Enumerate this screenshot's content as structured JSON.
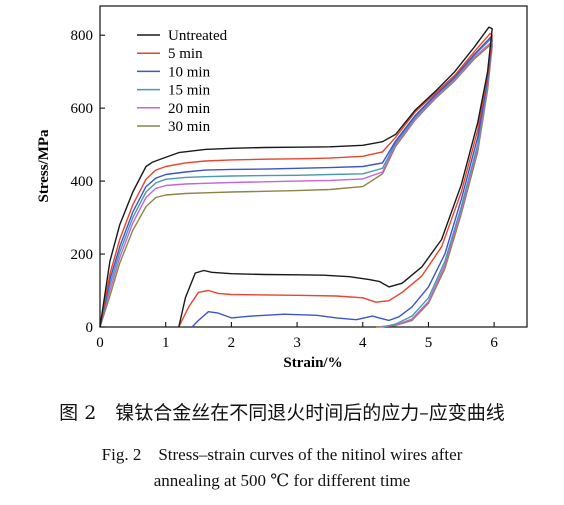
{
  "chart_data": {
    "type": "line",
    "xlabel": "Strain/%",
    "ylabel": "Stress/MPa",
    "xlim": [
      0,
      6.5
    ],
    "ylim": [
      0,
      880
    ],
    "xticks": [
      "0",
      "1",
      "2",
      "3",
      "4",
      "5",
      "6"
    ],
    "yticks": [
      "0",
      "200",
      "400",
      "600",
      "800"
    ],
    "grid": false,
    "legend": "top-left",
    "series": [
      {
        "name": "Untreated",
        "color": "#1a1a1a",
        "x": [
          0,
          0.15,
          0.3,
          0.5,
          0.7,
          0.8,
          0.95,
          1.2,
          1.6,
          2.0,
          2.5,
          3.0,
          3.5,
          4.0,
          4.3,
          4.5,
          4.8,
          5.1,
          5.4,
          5.7,
          5.92,
          5.97,
          5.9,
          5.75,
          5.5,
          5.2,
          4.9,
          4.6,
          4.4,
          4.25,
          4.1,
          3.8,
          3.4,
          3.0,
          2.5,
          2.0,
          1.7,
          1.58,
          1.45,
          1.3,
          1.2
        ],
        "y": [
          0,
          180,
          280,
          370,
          440,
          452,
          462,
          478,
          487,
          490,
          492,
          493,
          494,
          498,
          508,
          528,
          595,
          645,
          700,
          768,
          822,
          818,
          700,
          560,
          390,
          240,
          165,
          120,
          110,
          125,
          130,
          138,
          142,
          143,
          144,
          146,
          150,
          155,
          148,
          80,
          0
        ]
      },
      {
        "name": "5 min",
        "color": "#e8442e",
        "x": [
          0,
          0.15,
          0.3,
          0.5,
          0.7,
          0.85,
          1.0,
          1.3,
          1.6,
          2.0,
          2.5,
          3.0,
          3.5,
          4.0,
          4.3,
          4.5,
          4.8,
          5.1,
          5.4,
          5.7,
          5.94,
          5.97,
          5.9,
          5.75,
          5.5,
          5.2,
          4.9,
          4.6,
          4.4,
          4.2,
          4.0,
          3.6,
          3.0,
          2.5,
          2.0,
          1.8,
          1.65,
          1.5,
          1.35,
          1.2
        ],
        "y": [
          0,
          145,
          240,
          335,
          405,
          430,
          440,
          450,
          455,
          458,
          460,
          461,
          463,
          468,
          480,
          520,
          590,
          640,
          690,
          755,
          805,
          800,
          690,
          540,
          370,
          220,
          140,
          95,
          72,
          68,
          80,
          85,
          87,
          88,
          89,
          92,
          100,
          95,
          55,
          0
        ]
      },
      {
        "name": "10 min",
        "color": "#3c55c8",
        "x": [
          0,
          0.15,
          0.3,
          0.5,
          0.7,
          0.85,
          1.0,
          1.3,
          1.6,
          2.0,
          2.5,
          3.0,
          3.5,
          4.0,
          4.3,
          4.5,
          4.8,
          5.1,
          5.4,
          5.7,
          5.95,
          5.97,
          5.9,
          5.75,
          5.5,
          5.25,
          5.0,
          4.75,
          4.55,
          4.4,
          4.25,
          4.15,
          3.9,
          3.6,
          3.3,
          2.8,
          2.3,
          2.0,
          1.8,
          1.65,
          1.5,
          1.4
        ],
        "y": [
          0,
          130,
          220,
          315,
          385,
          408,
          418,
          425,
          430,
          432,
          433,
          435,
          437,
          440,
          450,
          510,
          580,
          635,
          685,
          748,
          795,
          790,
          680,
          520,
          350,
          200,
          110,
          55,
          28,
          18,
          25,
          30,
          20,
          25,
          32,
          35,
          30,
          25,
          38,
          42,
          18,
          0
        ]
      },
      {
        "name": "15 min",
        "color": "#4a9aa8",
        "x": [
          0,
          0.15,
          0.3,
          0.5,
          0.7,
          0.85,
          1.0,
          1.3,
          1.6,
          2.0,
          2.5,
          3.0,
          3.5,
          4.0,
          4.3,
          4.5,
          4.8,
          5.1,
          5.4,
          5.7,
          5.95,
          5.97,
          5.9,
          5.75,
          5.5,
          5.25,
          5.0,
          4.75,
          4.5,
          4.3
        ],
        "y": [
          0,
          115,
          205,
          300,
          370,
          395,
          405,
          410,
          412,
          414,
          415,
          416,
          418,
          420,
          435,
          505,
          575,
          632,
          682,
          745,
          790,
          785,
          670,
          500,
          330,
          180,
          80,
          30,
          8,
          0
        ]
      },
      {
        "name": "20 min",
        "color": "#c565d8",
        "x": [
          0,
          0.15,
          0.3,
          0.5,
          0.7,
          0.85,
          1.0,
          1.3,
          1.6,
          2.0,
          2.5,
          3.0,
          3.5,
          4.0,
          4.3,
          4.5,
          4.8,
          5.1,
          5.4,
          5.7,
          5.95,
          5.97,
          5.9,
          5.75,
          5.5,
          5.25,
          5.0,
          4.75,
          4.5,
          4.25
        ],
        "y": [
          0,
          100,
          190,
          285,
          355,
          380,
          388,
          392,
          394,
          396,
          398,
          400,
          402,
          406,
          425,
          500,
          570,
          628,
          678,
          740,
          780,
          775,
          660,
          490,
          320,
          170,
          70,
          22,
          5,
          0
        ]
      },
      {
        "name": "30 min",
        "color": "#8b8548",
        "x": [
          0,
          0.15,
          0.3,
          0.5,
          0.7,
          0.85,
          1.0,
          1.3,
          1.6,
          2.0,
          2.5,
          3.0,
          3.5,
          4.0,
          4.3,
          4.5,
          4.8,
          5.1,
          5.4,
          5.7,
          5.95,
          5.97,
          5.9,
          5.75,
          5.5,
          5.25,
          5.0,
          4.75,
          4.5,
          4.2
        ],
        "y": [
          0,
          85,
          175,
          265,
          330,
          355,
          362,
          366,
          368,
          370,
          372,
          374,
          377,
          385,
          420,
          495,
          568,
          625,
          675,
          735,
          775,
          770,
          650,
          480,
          310,
          160,
          65,
          18,
          4,
          0
        ]
      }
    ]
  },
  "caption": {
    "cn": "图 2　镍钛合金丝在不同退火时间后的应力–应变曲线",
    "en_line1": "Fig. 2　Stress–strain curves of the nitinol wires after",
    "en_line2": "annealing at 500 ℃ for different time"
  }
}
